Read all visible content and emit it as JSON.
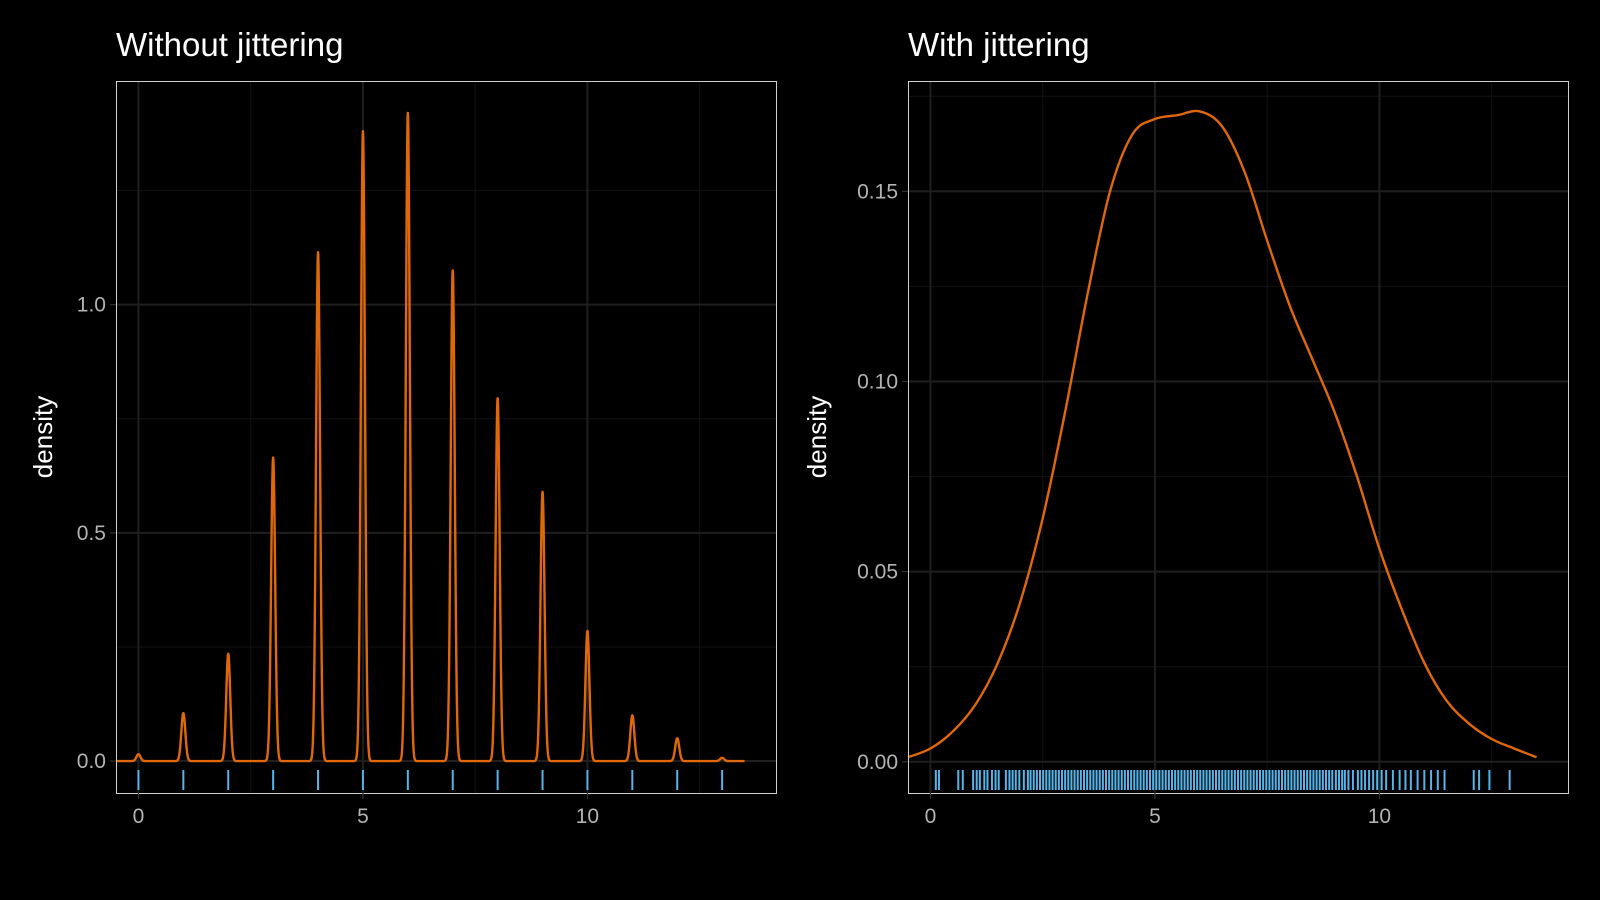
{
  "colors": {
    "background": "#000000",
    "panel_border": "#cfcfcf",
    "grid_major": "#1f1f1f",
    "grid_minor": "#121212",
    "density_line": "#e0680a",
    "rug": "#56b4e9",
    "tick_text": "#b3b3b3",
    "title_text": "#ffffff"
  },
  "chart_data": [
    {
      "type": "line",
      "title": "Without jittering",
      "xlabel": "",
      "ylabel": "density",
      "xlim": [
        -0.5,
        14.2
      ],
      "ylim": [
        -0.07,
        1.49
      ],
      "x_ticks": [
        0,
        5,
        10
      ],
      "x_tick_labels": [
        "0",
        "5",
        "10"
      ],
      "y_ticks": [
        0,
        0.5,
        1
      ],
      "y_tick_labels": [
        "0.0",
        "0.5",
        "1.0"
      ],
      "grid": true,
      "density_peaks": [
        {
          "x": 0,
          "density": 0.015
        },
        {
          "x": 1,
          "density": 0.105
        },
        {
          "x": 2,
          "density": 0.235
        },
        {
          "x": 3,
          "density": 0.665
        },
        {
          "x": 4,
          "density": 1.115
        },
        {
          "x": 5,
          "density": 1.38
        },
        {
          "x": 6,
          "density": 1.42
        },
        {
          "x": 7,
          "density": 1.075
        },
        {
          "x": 8,
          "density": 0.795
        },
        {
          "x": 9,
          "density": 0.59
        },
        {
          "x": 10,
          "density": 0.285
        },
        {
          "x": 11,
          "density": 0.1
        },
        {
          "x": 12,
          "density": 0.05
        },
        {
          "x": 13,
          "density": 0.007
        }
      ],
      "curve_x_range": [
        -0.5,
        13.5
      ],
      "rug_x": [
        0,
        1,
        2,
        3,
        4,
        5,
        6,
        7,
        8,
        9,
        10,
        11,
        12,
        13
      ]
    },
    {
      "type": "line",
      "title": "With jittering",
      "xlabel": "",
      "ylabel": "density",
      "xlim": [
        -0.5,
        14.2
      ],
      "ylim": [
        -0.0082,
        0.179
      ],
      "x_ticks": [
        0,
        5,
        10
      ],
      "x_tick_labels": [
        "0",
        "5",
        "10"
      ],
      "y_ticks": [
        0,
        0.05,
        0.1,
        0.15
      ],
      "y_tick_labels": [
        "0.00",
        "0.05",
        "0.10",
        "0.15"
      ],
      "grid": true,
      "curve": {
        "x": [
          -0.5,
          0,
          0.5,
          1,
          1.5,
          2,
          2.5,
          3,
          3.5,
          4,
          4.5,
          5,
          5.5,
          6,
          6.5,
          7,
          7.5,
          8,
          8.5,
          9,
          9.5,
          10,
          10.5,
          11,
          11.5,
          12,
          12.5,
          13,
          13.5
        ],
        "density": [
          0.0012,
          0.0035,
          0.008,
          0.015,
          0.026,
          0.042,
          0.064,
          0.092,
          0.123,
          0.15,
          0.165,
          0.169,
          0.17,
          0.171,
          0.167,
          0.155,
          0.137,
          0.12,
          0.106,
          0.092,
          0.075,
          0.056,
          0.04,
          0.026,
          0.016,
          0.01,
          0.006,
          0.0035,
          0.0012
        ]
      },
      "rug_x": [
        0.12,
        0.19,
        0.62,
        0.72,
        0.95,
        1.03,
        1.1,
        1.2,
        1.27,
        1.37,
        1.45,
        1.52,
        1.68,
        1.76,
        1.83,
        1.9,
        1.98,
        2.08,
        2.17,
        2.23,
        2.3,
        2.37,
        2.44,
        2.51,
        2.58,
        2.65,
        2.72,
        2.79,
        2.86,
        2.93,
        3.0,
        3.07,
        3.14,
        3.21,
        3.28,
        3.35,
        3.42,
        3.49,
        3.56,
        3.63,
        3.7,
        3.77,
        3.84,
        3.91,
        3.98,
        4.05,
        4.12,
        4.19,
        4.26,
        4.33,
        4.4,
        4.47,
        4.54,
        4.61,
        4.68,
        4.75,
        4.82,
        4.89,
        4.96,
        5.03,
        5.1,
        5.17,
        5.24,
        5.31,
        5.38,
        5.45,
        5.52,
        5.59,
        5.66,
        5.73,
        5.8,
        5.87,
        5.94,
        6.01,
        6.08,
        6.15,
        6.22,
        6.29,
        6.36,
        6.43,
        6.5,
        6.57,
        6.64,
        6.71,
        6.78,
        6.85,
        6.92,
        6.99,
        7.06,
        7.13,
        7.2,
        7.27,
        7.34,
        7.41,
        7.48,
        7.55,
        7.62,
        7.69,
        7.76,
        7.83,
        7.9,
        7.97,
        8.04,
        8.11,
        8.18,
        8.25,
        8.32,
        8.39,
        8.46,
        8.53,
        8.6,
        8.67,
        8.74,
        8.81,
        8.88,
        8.95,
        9.03,
        9.1,
        9.17,
        9.23,
        9.31,
        9.41,
        9.52,
        9.6,
        9.68,
        9.77,
        9.86,
        9.95,
        10.05,
        10.15,
        10.3,
        10.45,
        10.58,
        10.7,
        10.85,
        11.0,
        11.15,
        11.3,
        11.45,
        12.1,
        12.22,
        12.45,
        12.9
      ]
    }
  ]
}
